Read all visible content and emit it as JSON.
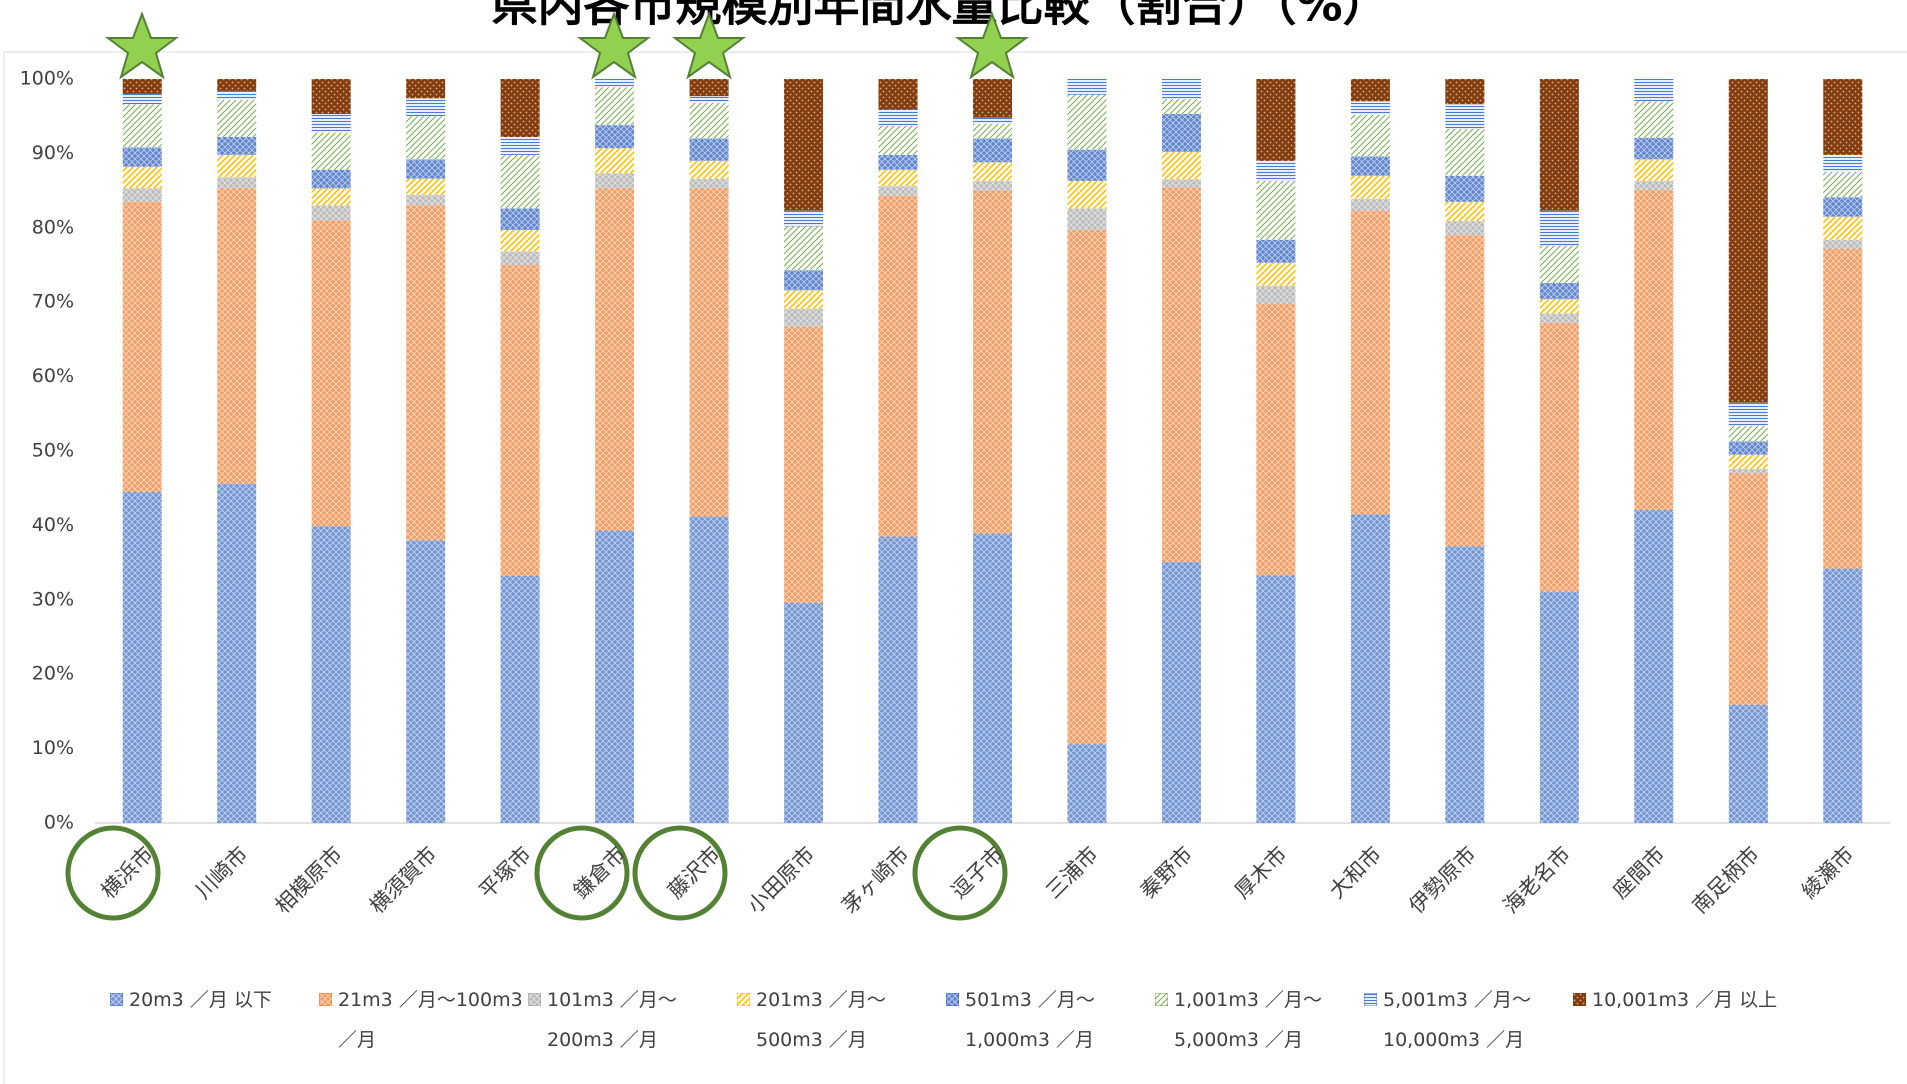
{
  "chart_data": {
    "type": "stacked_bar",
    "title": "県内各市規模別年間水量比較（割合）（%）",
    "categories": [
      "横浜市",
      "川崎市",
      "相模原市",
      "横須賀市",
      "平塚市",
      "鎌倉市",
      "藤沢市",
      "小田原市",
      "茅ヶ崎市",
      "逗子市",
      "三浦市",
      "秦野市",
      "厚木市",
      "大和市",
      "伊勢原市",
      "海老名市",
      "座間市",
      "南足柄市",
      "綾瀬市"
    ],
    "series": [
      {
        "name": "20m3 ／月 以下",
        "color": "#4472c4",
        "values": [
          44.5,
          45.6,
          39.9,
          38.0,
          33.2,
          39.3,
          41.2,
          29.6,
          38.5,
          38.9,
          10.6,
          35.1,
          33.3,
          41.5,
          37.2,
          31.1,
          42.1,
          15.9,
          34.2
        ]
      },
      {
        "name": "21m3 ／月〜100m3 ／月",
        "color": "#ed7d31",
        "values": [
          39.0,
          39.7,
          41.1,
          45.0,
          41.8,
          46.0,
          44.1,
          37.1,
          45.8,
          46.1,
          69.1,
          50.3,
          36.5,
          40.8,
          41.8,
          36.1,
          43.0,
          31.1,
          43.0
        ]
      },
      {
        "name": "101m3 ／月〜200m3 ／月",
        "color": "#a5a5a5",
        "values": [
          1.8,
          1.5,
          2.0,
          1.4,
          1.8,
          2.0,
          1.3,
          2.4,
          1.3,
          1.3,
          2.9,
          1.1,
          2.4,
          1.6,
          1.9,
          1.3,
          1.2,
          0.6,
          1.2
        ]
      },
      {
        "name": "201m3 ／月〜500m3 ／月",
        "color": "#ffc000",
        "values": [
          2.9,
          3.0,
          2.3,
          2.2,
          2.9,
          3.4,
          2.4,
          2.5,
          2.2,
          2.5,
          3.7,
          3.7,
          3.1,
          3.1,
          2.6,
          1.9,
          2.9,
          1.9,
          3.1
        ]
      },
      {
        "name": "501m3 ／月〜1,000m3 ／月",
        "color": "#2f5fbf",
        "values": [
          2.6,
          2.4,
          2.5,
          2.6,
          2.9,
          3.1,
          3.0,
          2.7,
          2.0,
          3.2,
          4.2,
          5.1,
          3.1,
          2.6,
          3.5,
          2.2,
          2.9,
          1.8,
          2.6
        ]
      },
      {
        "name": "1,001m3 ／月〜5,000m3 ／月",
        "color": "#70ad47",
        "values": [
          5.8,
          5.0,
          5.0,
          5.8,
          7.2,
          5.1,
          4.8,
          5.9,
          3.9,
          2.0,
          7.4,
          2.0,
          7.9,
          5.6,
          6.3,
          5.0,
          4.9,
          2.1,
          3.4
        ]
      },
      {
        "name": "5,001m3 ／月〜10,000m3 ／月",
        "color": "#4a7bd0",
        "values": [
          1.4,
          1.2,
          2.5,
          2.4,
          2.4,
          1.1,
          0.9,
          2.1,
          2.2,
          0.8,
          2.1,
          2.7,
          2.7,
          1.8,
          3.3,
          4.7,
          3.0,
          3.1,
          2.3
        ]
      },
      {
        "name": "10,001m3 ／月 以上",
        "color": "#843c0c",
        "values": [
          2.0,
          1.6,
          4.7,
          2.6,
          7.8,
          0.0,
          2.3,
          17.7,
          4.1,
          5.2,
          0.0,
          0.0,
          11.0,
          3.0,
          3.4,
          17.7,
          0.0,
          43.5,
          10.2
        ]
      }
    ],
    "ylim": [
      0,
      100
    ],
    "yticks": [
      {
        "value": 0,
        "label": "0%"
      },
      {
        "value": 10,
        "label": "10%"
      },
      {
        "value": 20,
        "label": "20%"
      },
      {
        "value": 30,
        "label": "30%"
      },
      {
        "value": 40,
        "label": "40%"
      },
      {
        "value": 50,
        "label": "50%"
      },
      {
        "value": 60,
        "label": "60%"
      },
      {
        "value": 70,
        "label": "70%"
      },
      {
        "value": 80,
        "label": "80%"
      },
      {
        "value": 90,
        "label": "90%"
      },
      {
        "value": 100,
        "label": "100%"
      }
    ],
    "grid": false
  }
}
